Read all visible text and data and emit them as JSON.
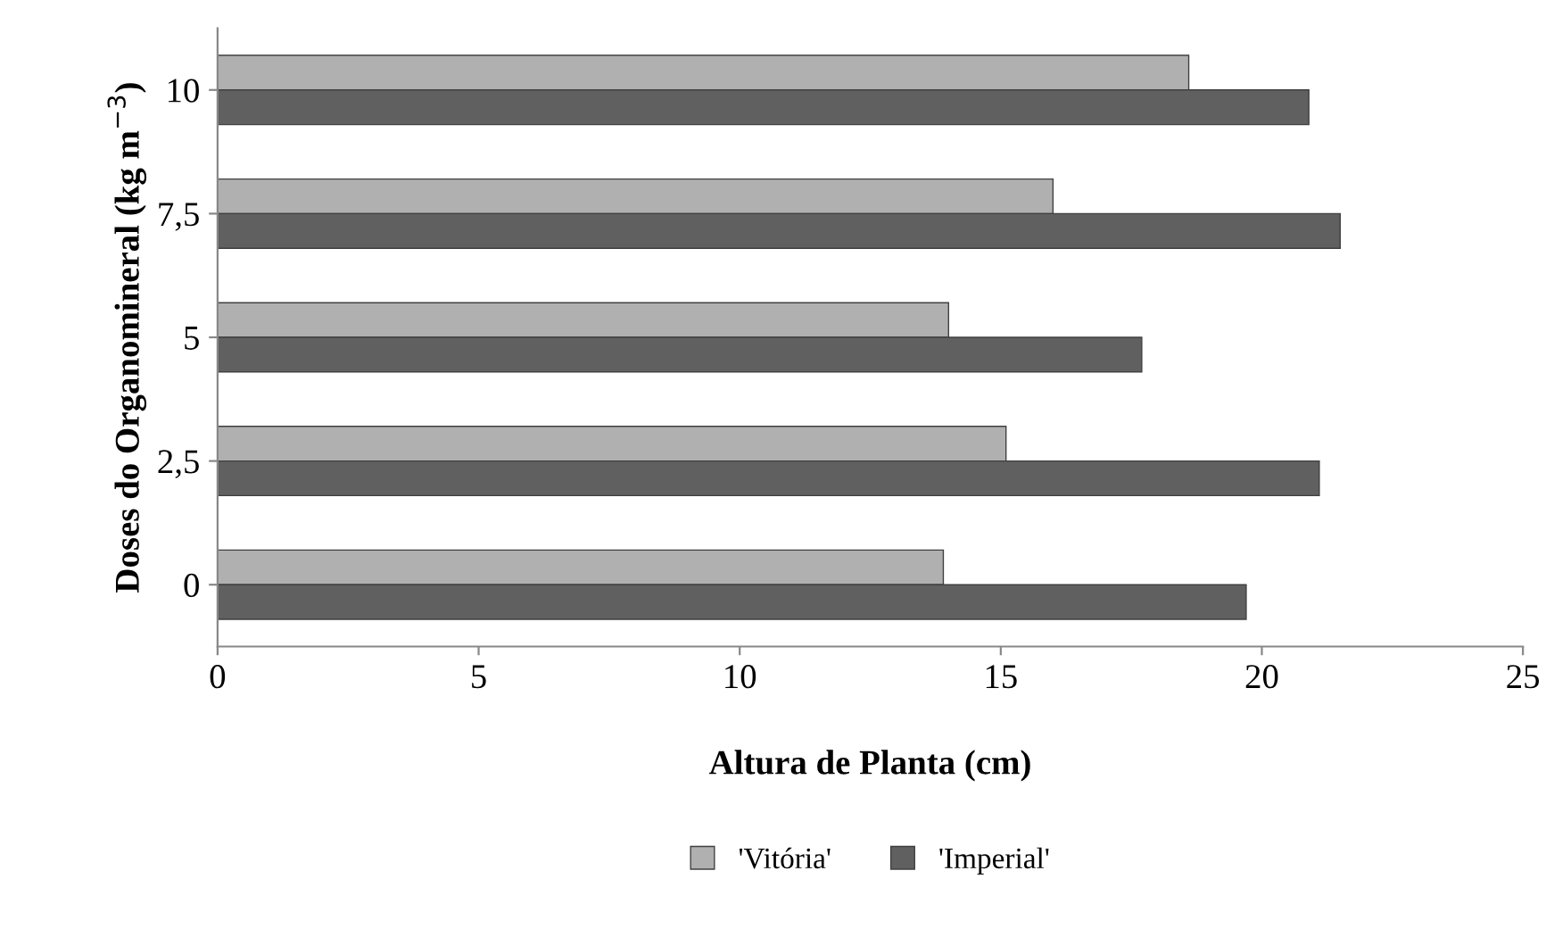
{
  "chart_data": {
    "type": "bar",
    "orientation": "horizontal",
    "xlabel": "Altura de Planta (cm)",
    "ylabel": "Doses do Organomineral (kg m$^{−3}$)",
    "categories": [
      "10",
      "7,5",
      "5",
      "2,5",
      "0"
    ],
    "series": [
      {
        "name": "'Vitória'",
        "color": "#b0b0b0",
        "values": [
          18.6,
          16.0,
          14.0,
          15.1,
          13.9
        ]
      },
      {
        "name": "'Imperial'",
        "color": "#606060",
        "values": [
          20.9,
          21.5,
          17.7,
          21.1,
          19.7
        ]
      }
    ],
    "xlim": [
      0,
      25
    ],
    "xticks": [
      0,
      5,
      10,
      15,
      20,
      25
    ],
    "grid": false,
    "legend": "bottom"
  }
}
